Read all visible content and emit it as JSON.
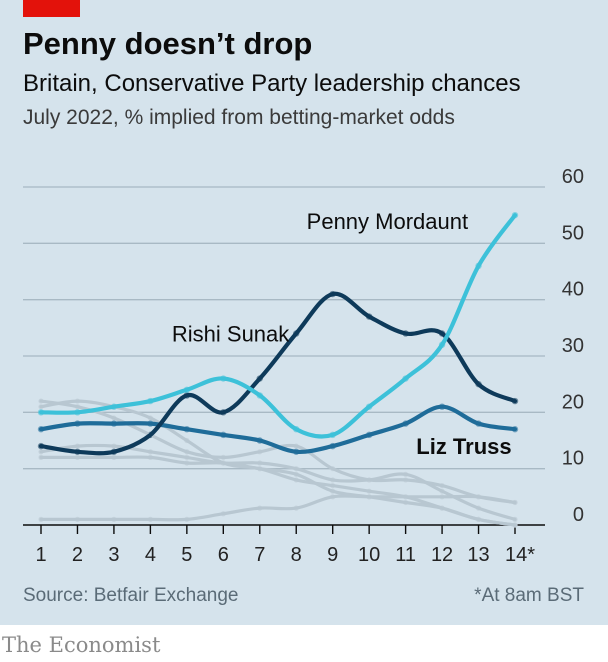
{
  "header": {
    "title": "Penny doesn’t drop",
    "subtitle": "Britain, Conservative Party leadership chances",
    "subtitle2": "July 2022, % implied from betting-market odds"
  },
  "footer": {
    "source": "Source: Betfair Exchange",
    "footnote": "*At 8am BST",
    "brand": "The Economist"
  },
  "colors": {
    "background": "#d5e3ec",
    "brand_red": "#e3120b",
    "mordaunt": "#3dc1d9",
    "sunak": "#0e3a5a",
    "truss": "#1f6c99",
    "others": "#b8c7d1",
    "grid": "#a8b9c4"
  },
  "chart_data": {
    "type": "line",
    "x": [
      1,
      2,
      3,
      4,
      5,
      6,
      7,
      8,
      9,
      10,
      11,
      12,
      13,
      14
    ],
    "x_tick_labels": [
      "1",
      "2",
      "3",
      "4",
      "5",
      "6",
      "7",
      "8",
      "9",
      "10",
      "11",
      "12",
      "13",
      "14*"
    ],
    "y_ticks": [
      0,
      10,
      20,
      30,
      40,
      50,
      60
    ],
    "ylim": [
      0,
      60
    ],
    "grid": true,
    "y_axis_side": "right",
    "series": [
      {
        "name": "Penny Mordaunt",
        "role": "mordaunt",
        "values": [
          20,
          20,
          21,
          22,
          24,
          26,
          23,
          17,
          16,
          21,
          26,
          32,
          46,
          55
        ]
      },
      {
        "name": "Rishi Sunak",
        "role": "sunak",
        "values": [
          14,
          13,
          13,
          16,
          23,
          20,
          26,
          34,
          41,
          37,
          34,
          34,
          25,
          22
        ]
      },
      {
        "name": "Liz Truss",
        "role": "truss",
        "values": [
          17,
          18,
          18,
          18,
          17,
          16,
          15,
          13,
          14,
          16,
          18,
          21,
          18,
          17
        ]
      },
      {
        "role": "other",
        "values": [
          21,
          22,
          21,
          19,
          15,
          11,
          10,
          8,
          7,
          6,
          5,
          3,
          1,
          0
        ]
      },
      {
        "role": "other",
        "values": [
          22,
          21,
          19,
          16,
          13,
          12,
          13,
          14,
          10,
          8,
          8,
          7,
          5,
          4
        ]
      },
      {
        "role": "other",
        "values": [
          13,
          14,
          14,
          13,
          12,
          11,
          11,
          10,
          8,
          8,
          9,
          6,
          3,
          1
        ]
      },
      {
        "role": "other",
        "values": [
          12,
          12,
          12,
          12,
          11,
          11,
          10,
          9,
          6,
          5,
          4,
          3,
          1,
          0
        ]
      },
      {
        "role": "other",
        "values": [
          1,
          1,
          1,
          1,
          1,
          2,
          3,
          3,
          5,
          5,
          5,
          5,
          5,
          4
        ]
      }
    ],
    "annotations": [
      {
        "text": "Penny Mordaunt",
        "series": "Penny Mordaunt",
        "x": 10.5,
        "y": 54
      },
      {
        "text": "Rishi Sunak",
        "series": "Rishi Sunak",
        "x": 6.2,
        "y": 34
      },
      {
        "text": "Liz Truss",
        "series": "Liz Truss",
        "x": 12.6,
        "y": 14
      }
    ]
  }
}
